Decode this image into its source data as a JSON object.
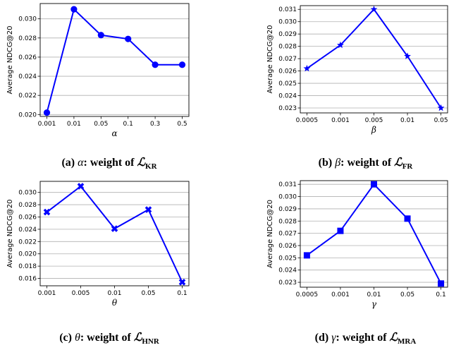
{
  "colors": {
    "series": "#0000ff",
    "grid": "#b0b0b0",
    "axis": "#000000"
  },
  "chart_data": [
    {
      "type": "line",
      "panel": "a",
      "marker": "circle",
      "x": [
        "0.001",
        "0.01",
        "0.05",
        "0.1",
        "0.3",
        "0.5"
      ],
      "values": [
        0.0202,
        0.031,
        0.0283,
        0.0279,
        0.0252,
        0.0252
      ],
      "xlabel": "α",
      "ylabel": "Average NDCG@20",
      "yticks": [
        "0.020",
        "0.022",
        "0.024",
        "0.026",
        "0.028",
        "0.030"
      ],
      "ylim": [
        0.0198,
        0.0316
      ],
      "grid": "horizontal",
      "caption": {
        "prefix": "(a) ",
        "sym": "α",
        "mid": ": weight of ",
        "cal": "ℒ",
        "sub": "KR"
      }
    },
    {
      "type": "line",
      "panel": "b",
      "marker": "star",
      "x": [
        "0.0005",
        "0.001",
        "0.005",
        "0.01",
        "0.05"
      ],
      "values": [
        0.0262,
        0.0281,
        0.031,
        0.0272,
        0.023
      ],
      "xlabel": "β",
      "ylabel": "Average NDCG@20",
      "yticks": [
        "0.023",
        "0.024",
        "0.025",
        "0.026",
        "0.027",
        "0.028",
        "0.029",
        "0.030",
        "0.031"
      ],
      "ylim": [
        0.0226,
        0.0313
      ],
      "grid": "horizontal",
      "caption": {
        "prefix": "(b) ",
        "sym": "β",
        "mid": ": weight of ",
        "cal": "ℒ",
        "sub": "FR"
      }
    },
    {
      "type": "line",
      "panel": "c",
      "marker": "x",
      "x": [
        "0.001",
        "0.005",
        "0.01",
        "0.05",
        "0.1"
      ],
      "values": [
        0.0268,
        0.031,
        0.0241,
        0.0272,
        0.0154
      ],
      "xlabel": "θ",
      "ylabel": "Average NDCG@20",
      "yticks": [
        "0.016",
        "0.018",
        "0.020",
        "0.022",
        "0.024",
        "0.026",
        "0.028",
        "0.030"
      ],
      "ylim": [
        0.0148,
        0.0318
      ],
      "grid": "horizontal",
      "caption": {
        "prefix": "(c) ",
        "sym": "θ",
        "mid": ": weight of ",
        "cal": "ℒ",
        "sub": "HNR"
      }
    },
    {
      "type": "line",
      "panel": "d",
      "marker": "square",
      "x": [
        "0.0005",
        "0.001",
        "0.01",
        "0.05",
        "0.1"
      ],
      "values": [
        0.0252,
        0.0272,
        0.031,
        0.0282,
        0.0229
      ],
      "xlabel": "γ",
      "ylabel": "Average NDCG@20",
      "yticks": [
        "0.023",
        "0.024",
        "0.025",
        "0.026",
        "0.027",
        "0.028",
        "0.029",
        "0.030",
        "0.031"
      ],
      "ylim": [
        0.0226,
        0.0313
      ],
      "grid": "horizontal",
      "caption": {
        "prefix": "(d) ",
        "sym": "γ",
        "mid": ": weight of ",
        "cal": "ℒ",
        "sub": "MRA"
      }
    }
  ]
}
